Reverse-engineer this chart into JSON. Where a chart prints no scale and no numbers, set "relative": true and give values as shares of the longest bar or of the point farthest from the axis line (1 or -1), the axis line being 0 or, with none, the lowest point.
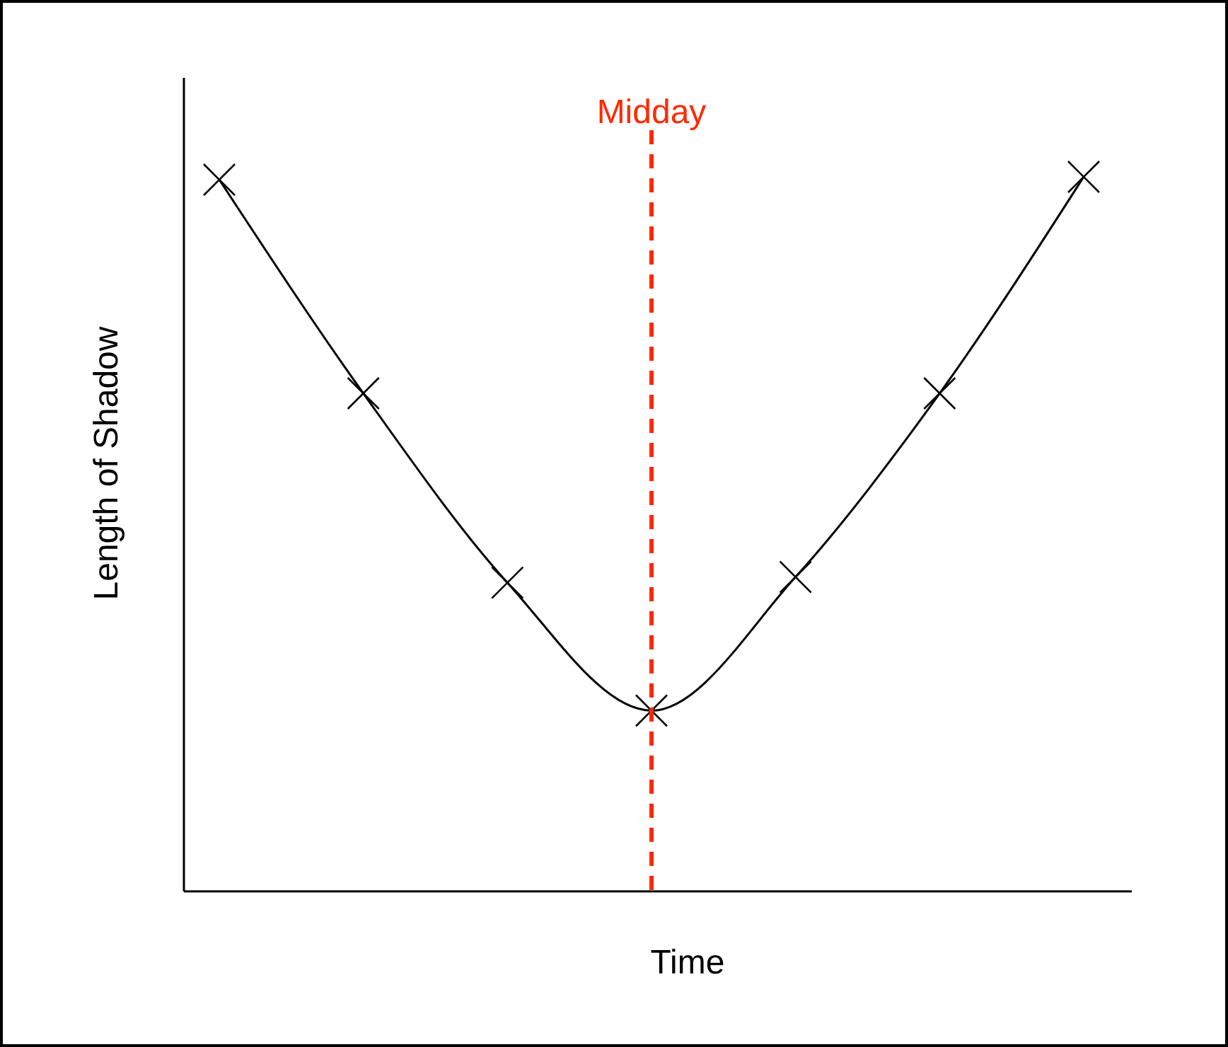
{
  "chart_data": {
    "type": "line",
    "xlabel": "Time",
    "ylabel": "Length of Shadow",
    "relative": true,
    "categories": [
      null,
      null,
      null,
      null,
      null,
      null,
      null
    ],
    "series": [
      {
        "color": "#000000",
        "values": [
          0.996,
          0.697,
          0.432,
          0.253,
          0.44,
          0.697,
          1.0
        ]
      }
    ],
    "marker": "cross",
    "line_style": "solid",
    "annotations": [
      "Midday"
    ]
  }
}
